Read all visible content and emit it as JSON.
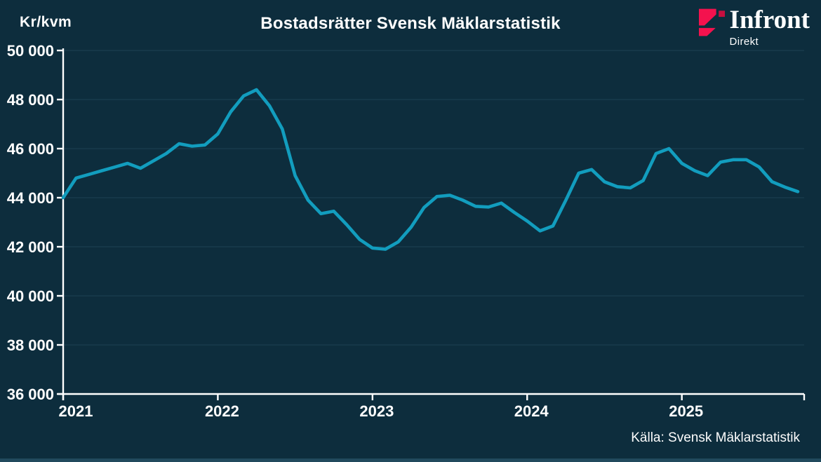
{
  "header": {
    "unit_label": "Kr/kvm",
    "title": "Bostadsrätter Svensk Mäklarstatistik",
    "logo": {
      "brand": "Infront",
      "sub": "Direkt",
      "mark_color": "#f4124e",
      "mark_color_dark": "#c60f3f"
    }
  },
  "footer": {
    "source": "Källa: Svensk Mäklarstatistik"
  },
  "colors": {
    "background": "#0d2d3d",
    "line": "#129dbe",
    "grid": "#1b3e50",
    "axis": "#ffffff",
    "text": "#ffffff",
    "bottom_bar": "#214a5d"
  },
  "chart_data": {
    "type": "line",
    "title": "Bostadsrätter Svensk Mäklarstatistik",
    "ylabel": "Kr/kvm",
    "xlabel": "",
    "ylim": [
      36000,
      50000
    ],
    "yticks": [
      36000,
      38000,
      40000,
      42000,
      44000,
      46000,
      48000,
      50000
    ],
    "ytick_labels": [
      "36 000",
      "38 000",
      "40 000",
      "42 000",
      "44 000",
      "46 000",
      "48 000",
      "50 000"
    ],
    "xtick_labels": [
      "2021",
      "2022",
      "2023",
      "2024",
      "2025"
    ],
    "x_monthly_start": "2021-01",
    "x_monthly_end": "2025-10",
    "grid": true,
    "legend": false,
    "source": "Svensk Mäklarstatistik",
    "series": [
      {
        "name": "Bostadsrätter kr/kvm",
        "values": [
          44000,
          44800,
          44950,
          45100,
          45250,
          45400,
          45200,
          45500,
          45800,
          46200,
          46100,
          46150,
          46600,
          47500,
          48150,
          48400,
          47750,
          46800,
          44900,
          43900,
          43350,
          43450,
          42900,
          42300,
          41950,
          41900,
          42200,
          42800,
          43600,
          44050,
          44100,
          43900,
          43650,
          43620,
          43780,
          43400,
          43050,
          42650,
          42850,
          43900,
          45000,
          45150,
          44650,
          44450,
          44400,
          44700,
          45800,
          46000,
          45400,
          45100,
          44900,
          45450,
          45550,
          45550,
          45250,
          44650,
          44430,
          44250
        ]
      }
    ]
  }
}
